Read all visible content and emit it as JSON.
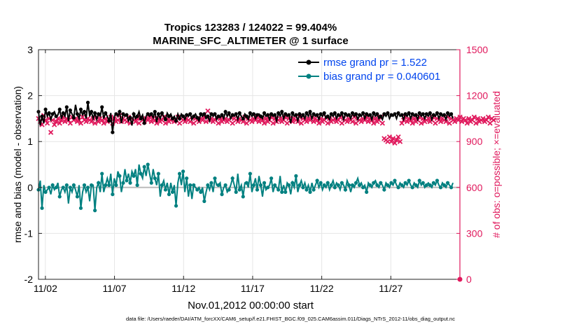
{
  "chart_data": {
    "type": "line",
    "title_line1": "Tropics 123283 / 124022 = 99.404%",
    "title_line2": "MARINE_SFC_ALTIMETER @ 1 surface",
    "xlabel": "Nov.01,2012 00:00:00 start",
    "ylabel_left": "rmse and bias (model - observation)",
    "ylabel_right": "# of obs: o=possible; ×=evaluated",
    "footnote": "data file: /Users/raeder/DAI/ATM_forcXX/CAM6_setup/f.e21.FHIST_BGC.f09_025.CAM6assim.011/Diags_NTrS_2012-11/obs_diag_output.nc",
    "xlim": [
      0.5,
      31.0
    ],
    "ylim_left": [
      -2,
      3
    ],
    "ylim_right": [
      0,
      1500
    ],
    "x_ticks": [
      1,
      6,
      11,
      16,
      21,
      26
    ],
    "x_tick_labels": [
      "11/02",
      "11/07",
      "11/12",
      "11/17",
      "11/22",
      "11/27"
    ],
    "y_left_ticks": [
      -2,
      -1,
      0,
      1,
      2,
      3
    ],
    "y_left_tick_labels": [
      "-2",
      "-1",
      "0",
      "1",
      "2",
      "3"
    ],
    "y_right_ticks": [
      0,
      300,
      600,
      900,
      1200,
      1500
    ],
    "y_right_tick_labels": [
      "0",
      "300",
      "600",
      "900",
      "1200",
      "1500"
    ],
    "grid": true,
    "zero_line": 0,
    "legend_position": "top-right",
    "colors": {
      "rmse": "#000000",
      "bias": "#008080",
      "obs": "#e0185c",
      "legend_text": "#0044ee",
      "zero_line": "#bbbbbb",
      "grid": "#e6e6e6"
    },
    "series": [
      {
        "name": "rmse grand pr = 1.522",
        "axis": "left",
        "values": [
          1.65,
          1.35,
          1.55,
          1.4,
          1.7,
          1.55,
          1.62,
          1.48,
          1.6,
          1.65,
          1.55,
          1.58,
          1.7,
          1.5,
          1.62,
          1.55,
          1.75,
          1.45,
          1.68,
          1.6,
          1.52,
          1.8,
          1.6,
          1.5,
          1.7,
          1.58,
          1.65,
          1.5,
          1.85,
          1.55,
          1.65,
          1.5,
          1.62,
          1.48,
          1.6,
          1.55,
          1.75,
          1.5,
          1.62,
          1.55,
          1.45,
          1.62,
          1.2,
          1.55,
          1.6,
          1.55,
          1.65,
          1.4,
          1.6,
          1.55,
          1.58,
          1.45,
          1.52,
          1.35,
          1.6,
          1.5,
          1.55,
          1.65,
          1.5,
          1.58,
          1.4,
          1.55,
          1.6,
          1.55,
          1.6,
          1.52,
          1.65,
          1.42,
          1.6,
          1.5,
          1.62,
          1.55,
          1.48,
          1.62,
          1.55,
          1.6,
          1.5,
          1.55,
          1.45,
          1.6,
          1.5,
          1.6,
          1.55,
          1.48,
          1.58,
          1.55,
          1.6,
          1.48,
          1.55,
          1.6,
          1.52,
          1.45,
          1.6,
          1.55,
          1.6,
          1.5,
          1.55,
          1.45,
          1.6,
          1.55,
          1.6,
          1.48,
          1.55,
          1.52,
          1.58,
          1.5,
          1.65,
          1.55,
          1.62,
          1.5,
          1.58,
          1.55,
          1.6,
          1.48,
          1.62,
          1.55,
          1.5,
          1.6,
          1.55,
          1.48,
          1.62,
          1.55,
          1.6,
          1.5,
          1.58,
          1.6,
          1.55,
          1.5,
          1.62,
          1.55,
          1.58,
          1.48,
          1.6,
          1.55,
          1.58,
          1.45,
          1.62,
          1.55,
          1.65,
          1.5,
          1.6,
          1.55,
          1.58,
          1.4,
          1.62,
          1.55,
          1.58,
          1.45,
          1.6,
          1.52,
          1.58,
          1.5,
          1.62,
          1.55,
          1.65,
          1.5,
          1.6,
          1.55,
          1.58,
          1.48,
          1.6,
          1.55,
          1.62,
          1.5,
          1.55,
          1.48,
          1.6,
          1.55,
          1.62,
          1.5,
          1.58,
          1.55,
          1.62,
          1.48,
          1.6,
          1.55,
          1.58,
          1.5,
          1.62,
          1.55,
          1.6,
          1.48,
          1.58,
          1.55,
          1.62,
          1.5,
          1.6,
          1.55,
          1.58,
          1.48,
          1.62,
          1.55,
          1.6,
          1.5,
          1.55,
          1.48,
          1.6,
          1.55,
          1.62,
          1.5,
          1.58,
          1.55,
          1.6,
          1.5,
          1.62,
          1.55,
          1.58,
          1.48,
          1.6,
          1.55,
          1.62,
          1.5,
          1.6,
          1.55,
          1.58,
          1.48,
          1.62,
          1.55,
          1.6,
          1.5,
          1.6,
          1.55,
          1.62,
          1.48,
          1.58,
          1.55,
          1.62,
          1.5,
          1.6,
          1.55,
          1.58,
          1.48,
          1.62,
          1.55,
          1.6,
          1.5
        ]
      },
      {
        "name": "bias grand pr = 0.040601",
        "axis": "left",
        "values": [
          -0.05,
          0.15,
          -0.45,
          0.05,
          -0.1,
          -0.05,
          0.0,
          -0.15,
          0.05,
          -0.05,
          0.0,
          0.1,
          -0.2,
          -0.05,
          0.0,
          -0.1,
          0.05,
          -0.35,
          0.0,
          -0.1,
          0.05,
          -0.05,
          -0.2,
          0.05,
          -0.45,
          -0.1,
          0.05,
          -0.1,
          0.0,
          -0.3,
          0.05,
          0.05,
          -0.5,
          0.0,
          0.1,
          -0.1,
          0.3,
          -0.1,
          0.05,
          0.2,
          0.05,
          0.3,
          -0.15,
          0.2,
          0.05,
          0.35,
          0.25,
          -0.1,
          0.1,
          0.4,
          0.15,
          0.3,
          0.1,
          0.35,
          0.25,
          0.4,
          0.05,
          0.5,
          0.3,
          0.2,
          0.45,
          0.25,
          0.5,
          0.3,
          0.1,
          0.4,
          0.2,
          0.05,
          0.3,
          -0.2,
          0.05,
          0.15,
          -0.05,
          0.1,
          -0.15,
          0.1,
          -0.1,
          0.05,
          -0.4,
          0.1,
          0.3,
          0.05,
          0.35,
          -0.1,
          0.2,
          -0.2,
          0.05,
          -0.25,
          0.05,
          0.0,
          -0.05,
          0.0,
          -0.1,
          0.0,
          -0.3,
          -0.1,
          0.05,
          -0.05,
          0.1,
          -0.1,
          0.2,
          0.05,
          0.05,
          0.1,
          -0.15,
          0.0,
          0.05,
          -0.1,
          -0.05,
          0.05,
          0.2,
          0.05,
          -0.1,
          0.3,
          -0.05,
          0.05,
          -0.2,
          0.1,
          0.1,
          0.0,
          0.3,
          -0.1,
          0.05,
          0.2,
          -0.05,
          0.25,
          0.05,
          -0.2,
          0.1,
          -0.05,
          0.0,
          0.05,
          0.2,
          -0.1,
          0.05,
          0.0,
          -0.05,
          0.25,
          -0.1,
          0.05,
          -0.1,
          0.1,
          0.05,
          -0.15,
          0.1,
          0.0,
          0.25,
          -0.1,
          0.05,
          0.15,
          0.0,
          0.1,
          -0.05,
          0.05,
          -0.1,
          0.1,
          -0.05,
          0.05,
          0.15,
          0.0,
          0.1,
          -0.05,
          0.05,
          0.0,
          0.1,
          -0.05,
          0.05,
          0.15,
          0.0,
          0.1,
          0.05,
          -0.05,
          0.1,
          0.05,
          -0.05,
          0.15,
          0.05,
          -0.1,
          0.05,
          0.0,
          0.1,
          0.2,
          0.05,
          0.1,
          0.0,
          0.05,
          -0.1,
          0.1,
          0.05,
          0.0,
          0.1,
          0.15,
          0.05,
          0.0,
          0.1,
          0.05,
          -0.05,
          0.1,
          0.05,
          0.0,
          0.1,
          0.05,
          0.15,
          0.05,
          0.0,
          0.1,
          0.05,
          0.0,
          0.1,
          0.05,
          0.15,
          0.05,
          0.0,
          0.1,
          0.05,
          0.0,
          0.15,
          0.05,
          0.1,
          0.0,
          0.05,
          0.1,
          0.05,
          0.0,
          0.1,
          0.05,
          0.15,
          0.05,
          0.0,
          0.1,
          0.05,
          0.0,
          0.1,
          0.05,
          0.0,
          0.1
        ]
      },
      {
        "name": "obs evaluated",
        "axis": "right",
        "marker": "x",
        "values": [
          1050,
          1030,
          1010,
          1070,
          1040,
          1020,
          1050,
          960,
          1040,
          1010,
          1030,
          1050,
          1020,
          1040,
          1060,
          1030,
          1050,
          1040,
          1020,
          1060,
          1040,
          1050,
          1030,
          1040,
          1020,
          1060,
          1040,
          1030,
          1050,
          1040,
          1030,
          1050,
          1020,
          1060,
          1030,
          1050,
          1040,
          1020,
          1050,
          1030,
          1040,
          1060,
          1020,
          1050,
          1030,
          1040,
          1070,
          1030,
          1050,
          1040,
          1030,
          1060,
          1020,
          1050,
          1040,
          1030,
          1050,
          1020,
          1060,
          1040,
          1030,
          1050,
          1040,
          1060,
          1030,
          1050,
          1040,
          1020,
          1050,
          1030,
          1040,
          1060,
          1020,
          1050,
          1030,
          1040,
          1050,
          1030,
          1040,
          1060,
          1020,
          1050,
          1040,
          1030,
          1050,
          1040,
          1030,
          1060,
          1020,
          1050,
          1040,
          1030,
          1050,
          1040,
          1060,
          1030,
          1100,
          1040,
          1050,
          1030,
          1040,
          1060,
          1020,
          1050,
          1030,
          1040,
          1050,
          1030,
          1040,
          1060,
          1020,
          1050,
          1040,
          1030,
          1050,
          1040,
          1030,
          1060,
          1020,
          1050,
          1040,
          1030,
          1050,
          1040,
          1060,
          1030,
          1050,
          1040,
          1020,
          1050,
          1030,
          1040,
          1060,
          1020,
          1050,
          1030,
          1040,
          1050,
          1030,
          1040,
          1060,
          1020,
          1050,
          1040,
          1030,
          1050,
          1040,
          1030,
          1060,
          1020,
          1050,
          1040,
          1030,
          1050,
          1040,
          1060,
          1030,
          1050,
          1040,
          1020,
          1050,
          1030,
          1040,
          1060,
          1020,
          1050,
          1030,
          1040,
          1050,
          1030,
          1040,
          1060,
          1020,
          1050,
          1040,
          1030,
          1050,
          1040,
          1030,
          1060,
          1020,
          1050,
          1040,
          1030,
          1050,
          1040,
          1060,
          1030,
          1050,
          1040,
          1020,
          1050,
          1030,
          1040,
          1060,
          1020,
          920,
          910,
          900,
          930,
          900,
          920,
          890,
          910,
          930,
          900,
          1020,
          1040,
          1060,
          1030,
          1050,
          1040,
          1020,
          1050,
          1030,
          1040,
          1060,
          1020,
          1050,
          1030,
          1040,
          1050,
          1030,
          1040,
          1060,
          1020,
          1050,
          1040,
          1030,
          1050,
          1040,
          1030,
          1060,
          1020,
          1050,
          1040,
          1030,
          1050,
          1040,
          1060,
          1030,
          1050,
          1040,
          1020,
          1050,
          1030,
          1040,
          1060,
          1020,
          1050,
          1030,
          1040,
          1050,
          1030,
          1040,
          1060,
          1020,
          1050,
          1040
        ]
      },
      {
        "name": "obs possible",
        "axis": "right",
        "marker": "o",
        "values": [
          0
        ]
      }
    ]
  }
}
